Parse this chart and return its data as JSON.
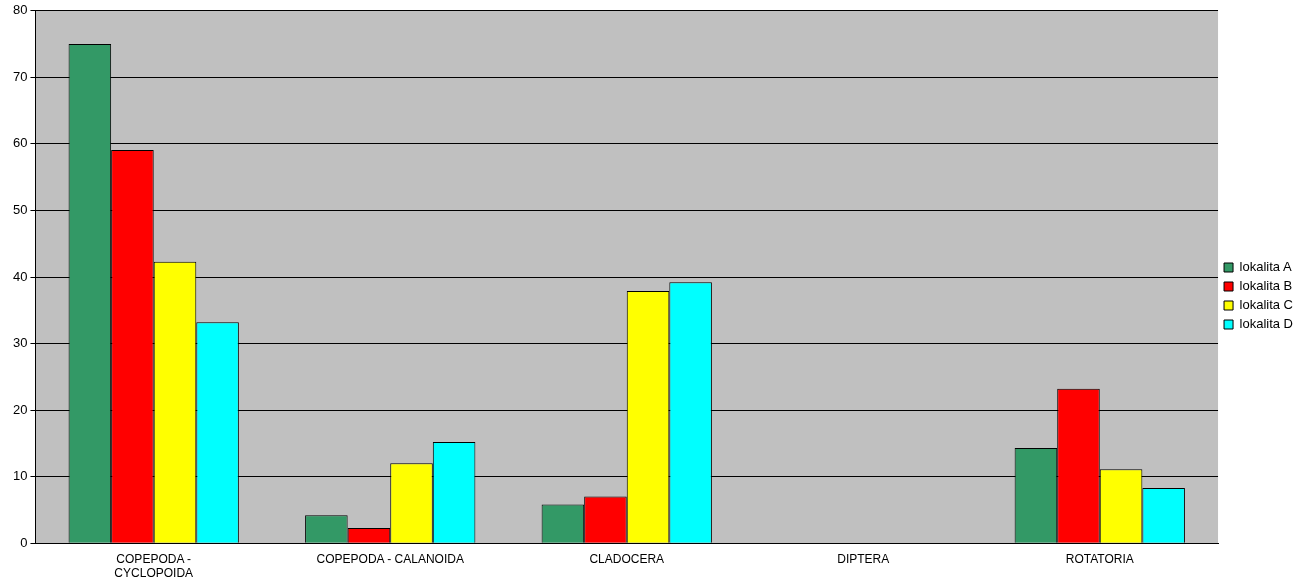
{
  "chart_data": {
    "type": "bar",
    "categories": [
      "COPEPODA - CYCLOPOIDA",
      "COPEPODA - CALANOIDA",
      "CLADOCERA",
      "DIPTERA",
      "ROTATORIA"
    ],
    "series": [
      {
        "name": "lokalita A",
        "color": "#339966",
        "values": [
          75,
          4.2,
          5.8,
          0,
          14.3
        ]
      },
      {
        "name": "lokalita B",
        "color": "#ff0000",
        "values": [
          59.1,
          2.3,
          7.0,
          0,
          23.2
        ]
      },
      {
        "name": "lokalita C",
        "color": "#ffff00",
        "values": [
          42.3,
          12.0,
          37.9,
          0,
          11.1
        ]
      },
      {
        "name": "lokalita D",
        "color": "#00ffff",
        "values": [
          33.2,
          15.2,
          39.2,
          0,
          8.3
        ]
      }
    ],
    "ylim": [
      0,
      80
    ],
    "yticks": [
      0,
      10,
      20,
      30,
      40,
      50,
      60,
      70,
      80
    ],
    "grid": "y",
    "legend": "right"
  }
}
